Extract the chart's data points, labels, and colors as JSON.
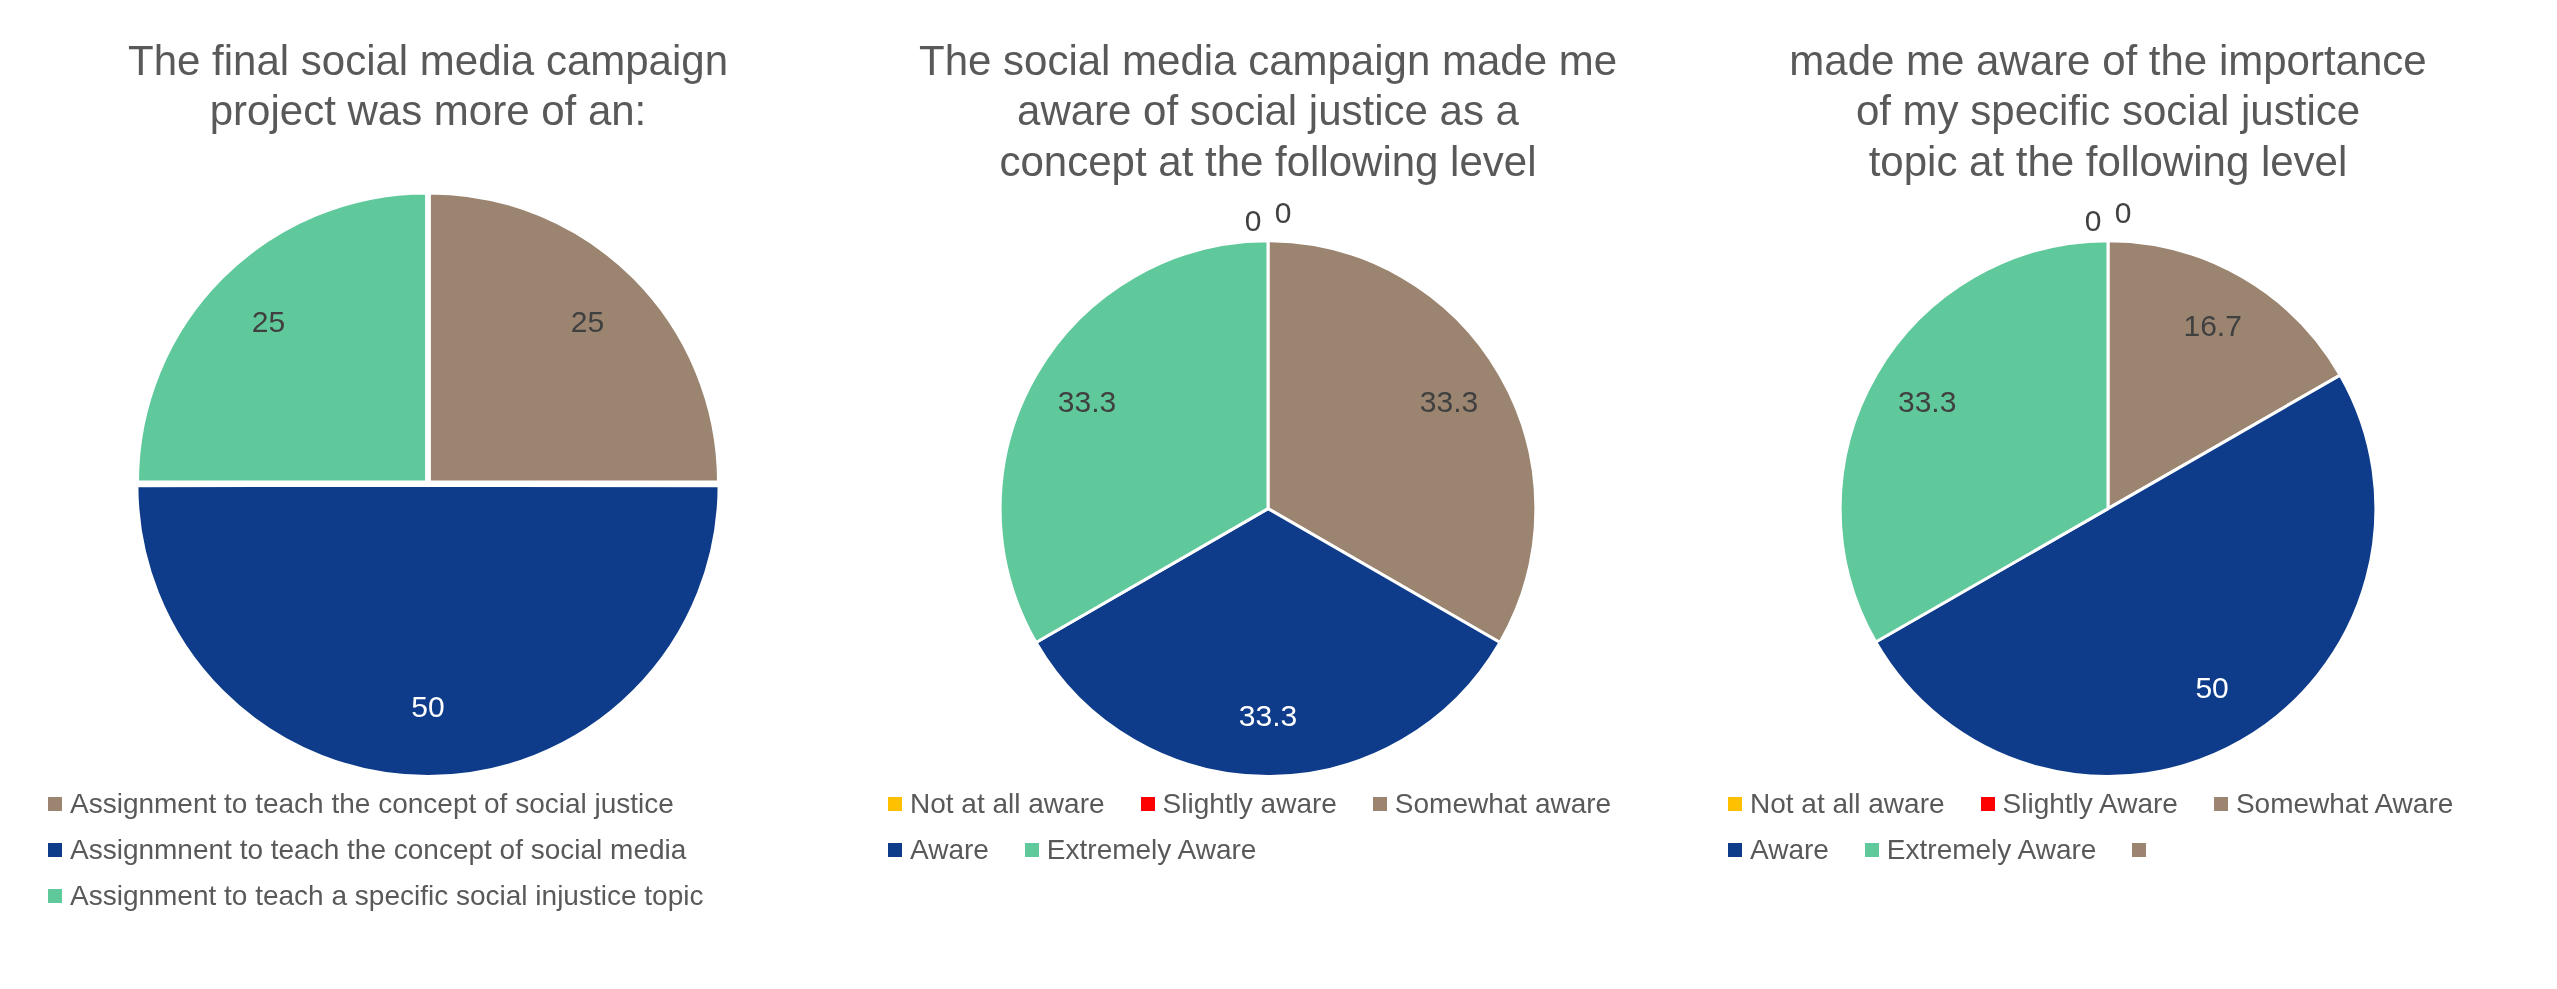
{
  "chart_data": [
    {
      "type": "pie",
      "title": "The final social media campaign project was more of an:",
      "categories": [
        "Assignment to teach the concept of social justice",
        "Assignmnent to teach the concept of social media",
        "Assignment to teach a specific social injustice topic"
      ],
      "values": [
        25,
        50,
        25
      ],
      "colors": [
        "#9b8570",
        "#0e3c8a",
        "#60c99c"
      ],
      "data_labels": true,
      "legend": "bottom"
    },
    {
      "type": "pie",
      "title": "The social media campaign made me aware of social justice as a concept at the following level",
      "categories": [
        "Not at all aware",
        "Slightly aware",
        "Somewhat aware",
        "Aware",
        "Extremely Aware"
      ],
      "values": [
        0,
        0,
        33.3,
        33.3,
        33.3
      ],
      "value_labels": [
        "0",
        "0",
        "33.3",
        "33.3",
        "33.3"
      ],
      "colors": [
        "#ffc000",
        "#ff0000",
        "#9b8570",
        "#0e3c8a",
        "#60c99c"
      ],
      "legend": "bottom"
    },
    {
      "type": "pie",
      "title": "made me aware of the importance of my specific social justice topic at the following level",
      "categories": [
        "Not at all aware",
        "Slightly Aware",
        "Somewhat Aware",
        "Aware",
        "Extremely Aware",
        null
      ],
      "values": [
        0,
        0,
        16.7,
        50,
        33.3,
        null
      ],
      "value_labels": [
        "0",
        "0",
        "16.7",
        "50",
        "33.3",
        null
      ],
      "colors": [
        "#ffc000",
        "#ff0000",
        "#9b8570",
        "#0e3c8a",
        "#60c99c",
        "#9b8570"
      ],
      "legend": "bottom"
    }
  ]
}
